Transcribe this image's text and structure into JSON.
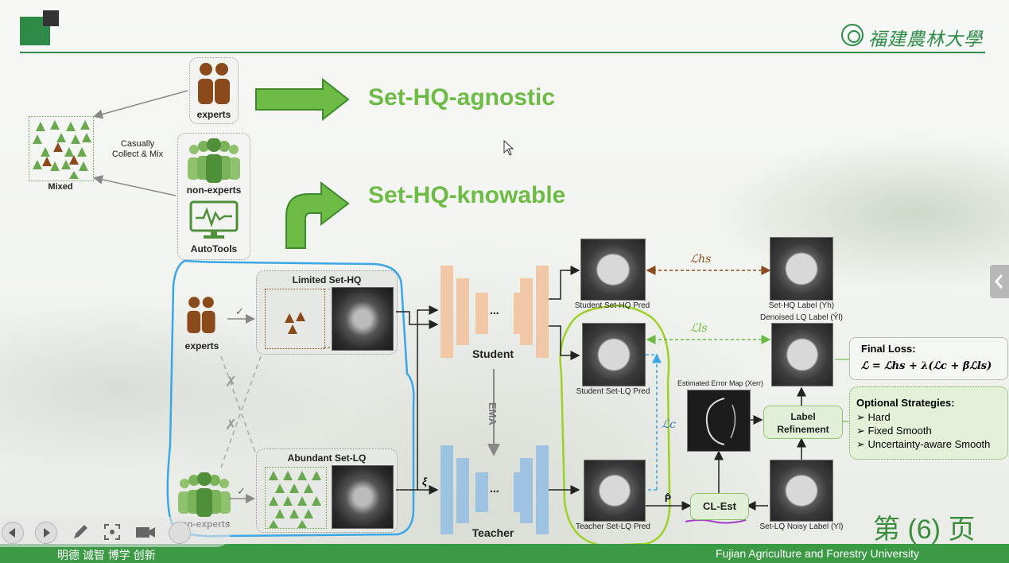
{
  "university": {
    "logo_text": "福建農林大學",
    "name_en": "Fujian Agriculture and Forestry University",
    "motto": "明德 诚智 博学 创新"
  },
  "slide": {
    "headline_agnostic": "Set-HQ-agnostic",
    "headline_knowable": "Set-HQ-knowable",
    "page_label": "第 (6) 页"
  },
  "diagram": {
    "experts": "experts",
    "non_experts": "non-experts",
    "autotools": "AutoTools",
    "mixed": "Mixed",
    "casually": "Casually",
    "collect_mix": "Collect & Mix",
    "limited_set": "Limited Set-HQ",
    "abundant_set": "Abundant Set-LQ",
    "student": "Student",
    "teacher": "Teacher",
    "ema": "EMA",
    "xi": "ξ",
    "p_hat": "P̂",
    "dots": "...",
    "student_hq_pred": "Student Set-HQ Pred",
    "student_lq_pred": "Student Set-LQ Pred",
    "teacher_lq_pred": "Teacher Set-LQ Pred",
    "set_hq_label": "Set-HQ Label (Yh)",
    "denoised_label": "Denoised LQ Label (Ŷl)",
    "error_map": "Estimated Error Map (Xerr)",
    "label_refinement_1": "Label",
    "label_refinement_2": "Refinement",
    "cl_est": "CL-Est",
    "noisy_label": "Set-LQ Noisy Label (Yl)",
    "loss_hs": "ℒhs",
    "loss_ls": "ℒls",
    "loss_c": "ℒc",
    "final_loss_title": "Final Loss:",
    "final_loss_eq": "ℒ = ℒhs + λ(ℒc + βℒls)",
    "optional_title": "Optional Strategies:",
    "opt_1": "➢ Hard",
    "opt_2": "➢ Fixed Smooth",
    "opt_3": "➢ Uncertainty-aware Smooth",
    "check": "✓",
    "cross": "✗"
  },
  "colors": {
    "green_accent": "#6dbb45",
    "dark_green": "#2e8b47",
    "expert_brown": "#8b4a1c",
    "nonexpert_green": "#6aa84f",
    "student_orange": "#f0c8a5",
    "teacher_blue": "#9dc3e1",
    "highlight_blue": "#3aa6e6",
    "highlight_green": "#9ed02a"
  },
  "icons": [
    "prev-icon",
    "next-icon",
    "pen-icon",
    "focus-icon",
    "camera-icon",
    "chevron-left-icon"
  ]
}
